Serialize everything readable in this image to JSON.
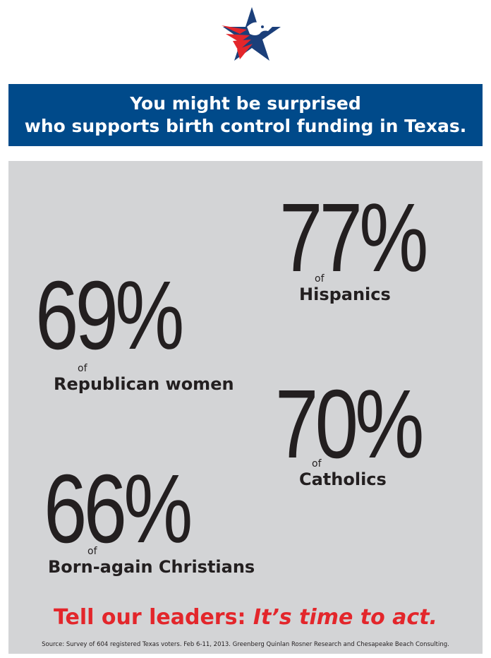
{
  "logo": {
    "name": "star-eagle-logo",
    "colors": {
      "blue": "#1b3f7a",
      "red": "#e3262b"
    }
  },
  "banner": {
    "line1": "You might be surprised",
    "line2": "who supports birth control funding in Texas."
  },
  "stats": [
    {
      "value": "77%",
      "of": "of",
      "group": "Hispanics"
    },
    {
      "value": "69%",
      "of": "of",
      "group": "Republican women"
    },
    {
      "value": "70%",
      "of": "of",
      "group": "Catholics"
    },
    {
      "value": "66%",
      "of": "of",
      "group": "Born-again Christians"
    }
  ],
  "cta": {
    "lead": "Tell our leaders:",
    "emphasis": "It’s time to act."
  },
  "source": "Source: Survey of 604 registered Texas voters. Feb 6-11, 2013. Greenberg Quinlan Rosner Research and Chesapeake Beach Consulting.",
  "colors": {
    "banner": "#004a8a",
    "panel": "#d3d4d6",
    "accent": "#e3262b",
    "text": "#231f20"
  }
}
